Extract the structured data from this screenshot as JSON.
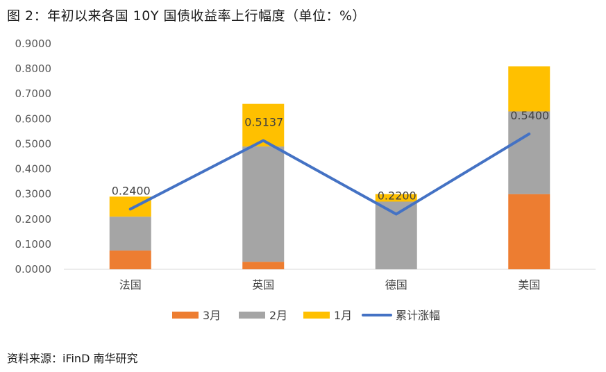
{
  "page": {
    "title": "图 2：年初以来各国 10Y 国债收益率上行幅度（单位：%）",
    "source": "资料来源：iFinD  南华研究"
  },
  "chart_data": {
    "type": "bar",
    "stacked": true,
    "title": "图 2：年初以来各国 10Y 国债收益率上行幅度（单位：%）",
    "categories": [
      "法国",
      "英国",
      "德国",
      "美国"
    ],
    "series": [
      {
        "name": "3月",
        "type": "bar",
        "color": "#ED7D31",
        "values": [
          0.075,
          0.03,
          0.0,
          0.3
        ]
      },
      {
        "name": "2月",
        "type": "bar",
        "color": "#A5A5A5",
        "values": [
          0.135,
          0.46,
          0.27,
          0.33
        ]
      },
      {
        "name": "1月",
        "type": "bar",
        "color": "#FFC000",
        "values": [
          0.08,
          0.17,
          0.03,
          0.18
        ]
      },
      {
        "name": "累计涨幅",
        "type": "line",
        "color": "#4472C4",
        "values": [
          0.24,
          0.5137,
          0.22,
          0.54
        ],
        "labels": [
          "0.2400",
          "0.5137",
          "0.2200",
          "0.5400"
        ]
      }
    ],
    "ylim": [
      0,
      0.9
    ],
    "yticks": [
      "0.0000",
      "0.1000",
      "0.2000",
      "0.3000",
      "0.4000",
      "0.5000",
      "0.6000",
      "0.7000",
      "0.8000",
      "0.9000"
    ],
    "xlabel": "",
    "ylabel": "",
    "legend": "bottom",
    "grid": false
  }
}
